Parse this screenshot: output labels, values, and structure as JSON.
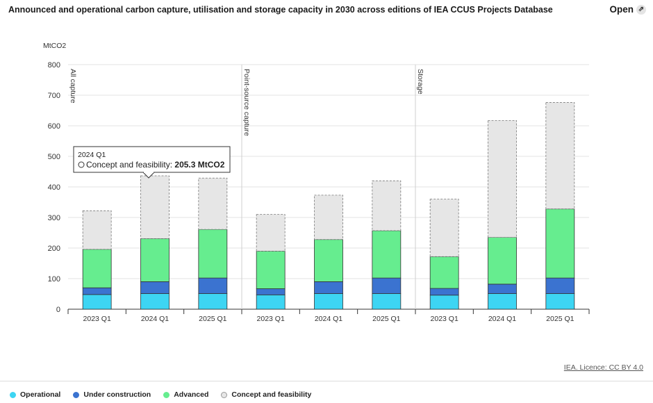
{
  "header": {
    "title": "Announced and operational carbon capture, utilisation and storage capacity in 2030 across editions of IEA CCUS Projects Database",
    "open_label": "Open",
    "open_icon": "external-link-icon"
  },
  "credit": "IEA. Licence: CC BY 4.0",
  "tooltip": {
    "category": "2024 Q1",
    "series": "Concept and feasibility",
    "value_text": "205.3 MtCO2"
  },
  "chart_data": {
    "type": "bar",
    "stacked": true,
    "ylabel": "MtCO2",
    "ylim": [
      0,
      800
    ],
    "yticks": [
      0,
      100,
      200,
      300,
      400,
      500,
      600,
      700,
      800
    ],
    "grid": true,
    "legend_position": "bottom",
    "groups": [
      {
        "label": "All capture",
        "categories": [
          "2023 Q1",
          "2024 Q1",
          "2025 Q1"
        ]
      },
      {
        "label": "Point-source capture",
        "categories": [
          "2023 Q1",
          "2024 Q1",
          "2025 Q1"
        ]
      },
      {
        "label": "Storage",
        "categories": [
          "2023 Q1",
          "2024 Q1",
          "2025 Q1"
        ]
      }
    ],
    "series": [
      {
        "name": "Operational",
        "color": "#3dd5f3",
        "values": [
          48,
          51,
          51,
          47,
          51,
          51,
          46,
          51,
          51
        ]
      },
      {
        "name": "Under construction",
        "color": "#3b73d0",
        "values": [
          22,
          39,
          51,
          20,
          39,
          51,
          22,
          31,
          51
        ]
      },
      {
        "name": "Advanced",
        "color": "#66ed8f",
        "values": [
          126,
          141,
          159,
          123,
          138,
          155,
          104,
          153,
          226
        ]
      },
      {
        "name": "Concept and feasibility",
        "color": "#e6e6e6",
        "values": [
          126,
          205.3,
          168,
          120,
          145,
          163,
          188,
          382,
          348
        ]
      }
    ]
  }
}
